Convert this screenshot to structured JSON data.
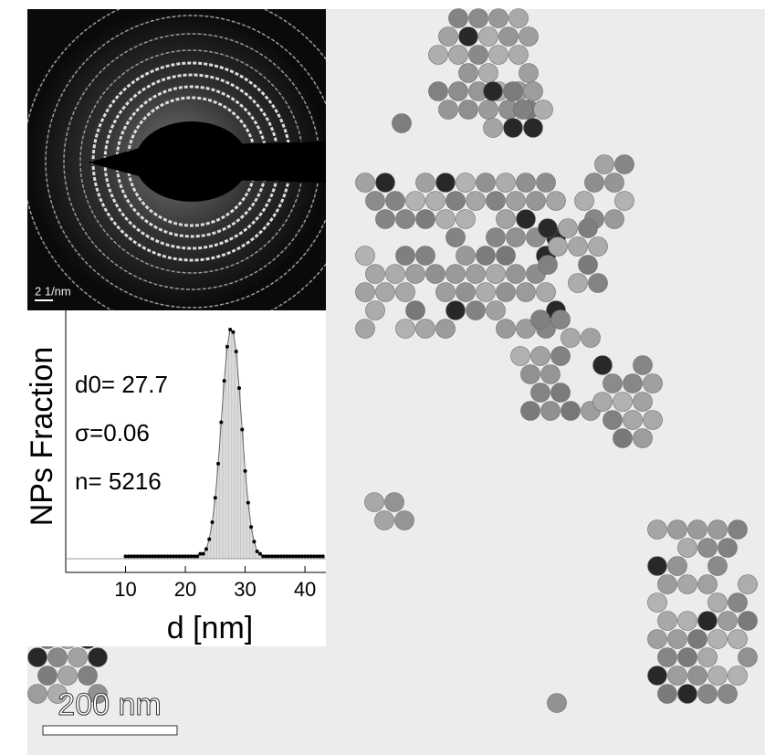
{
  "chart_data": {
    "type": "scatter",
    "xlabel": "d [nm]",
    "ylabel": "NPs Fraction",
    "annotations": [
      "d0= 27.7",
      "σ=0.06",
      "n= 5216"
    ],
    "x": [
      10,
      10.5,
      11,
      11.5,
      12,
      12.5,
      13,
      13.5,
      14,
      14.5,
      15,
      15.5,
      16,
      16.5,
      17,
      17.5,
      18,
      18.5,
      19,
      19.5,
      20,
      20.5,
      21,
      21.5,
      22,
      22.5,
      23,
      23.5,
      24,
      24.5,
      25,
      25.5,
      26,
      26.5,
      27,
      27.5,
      28,
      28.5,
      29,
      29.5,
      30,
      30.5,
      31,
      31.5,
      32,
      32.5,
      33,
      33.5,
      34,
      34.5,
      35,
      35.5,
      36,
      36.5,
      37,
      37.5,
      38,
      38.5,
      39,
      39.5,
      40,
      40.5,
      41,
      41.5,
      42,
      42.5,
      43
    ],
    "values": [
      0.01,
      0.01,
      0.01,
      0.01,
      0.01,
      0.01,
      0.01,
      0.01,
      0.01,
      0.01,
      0.01,
      0.01,
      0.01,
      0.01,
      0.01,
      0.01,
      0.01,
      0.01,
      0.01,
      0.01,
      0.01,
      0.01,
      0.01,
      0.01,
      0.01,
      0.02,
      0.02,
      0.04,
      0.08,
      0.15,
      0.25,
      0.39,
      0.56,
      0.73,
      0.87,
      0.94,
      0.93,
      0.85,
      0.7,
      0.53,
      0.36,
      0.23,
      0.13,
      0.07,
      0.03,
      0.02,
      0.01,
      0.01,
      0.01,
      0.01,
      0.01,
      0.01,
      0.01,
      0.01,
      0.01,
      0.01,
      0.01,
      0.01,
      0.01,
      0.01,
      0.01,
      0.01,
      0.01,
      0.01,
      0.01,
      0.01,
      0.01
    ],
    "xlim": [
      0,
      43.5
    ],
    "ylim": [
      0,
      1
    ],
    "xticks": [
      10,
      20,
      30,
      40
    ],
    "color": "#000000"
  },
  "diffraction": {
    "scale_label": "2 1/nm"
  },
  "micrograph": {
    "scale_label": "200 nm"
  }
}
